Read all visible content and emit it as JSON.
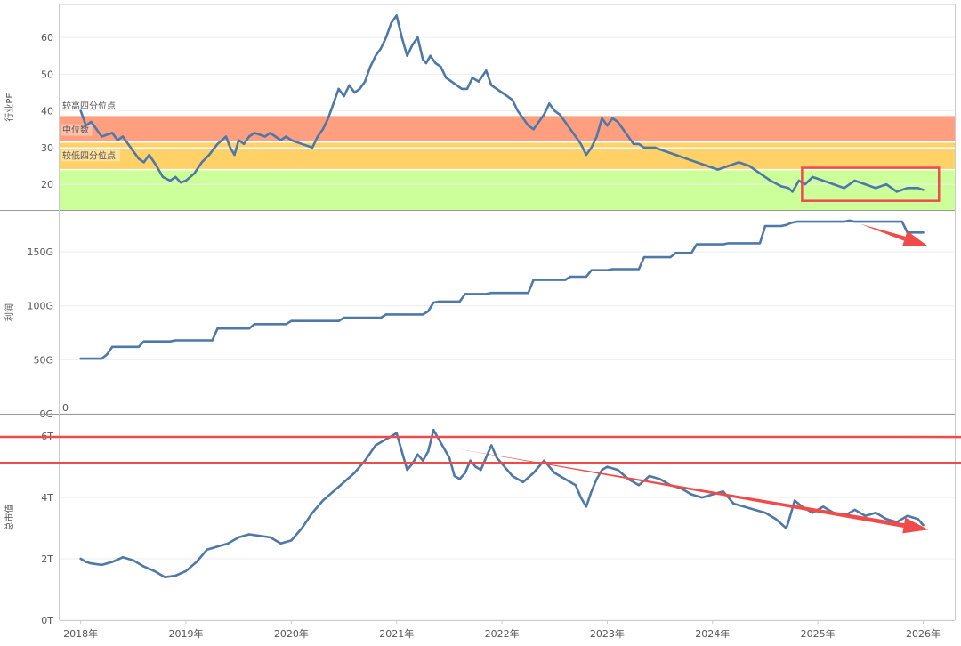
{
  "colors": {
    "line": "#4e79a7",
    "band_high": "#ff9f7f",
    "band_mid": "#ffd166",
    "band_low": "#ccff99",
    "annotation": "#ef4b4b",
    "grid": "#eeeeee",
    "axis": "#cccccc"
  },
  "chart_data": [
    {
      "id": "pe",
      "type": "line",
      "ylabel": "行业PE",
      "ylim": [
        13,
        69
      ],
      "yticks": [
        {
          "v": 20,
          "label": "20"
        },
        {
          "v": 30,
          "label": "30"
        },
        {
          "v": 40,
          "label": "40"
        },
        {
          "v": 50,
          "label": "50"
        },
        {
          "v": 60,
          "label": "60"
        }
      ],
      "bands": [
        {
          "from": 31.5,
          "to": 38.8,
          "label": "较高四分位点",
          "label_at": 40.8,
          "color": "band_high"
        },
        {
          "from": 29.8,
          "to": 31.5,
          "label": "中位数",
          "label_at": 34.2,
          "color": "band_mid"
        },
        {
          "from": 24.0,
          "to": 29.8,
          "label": "较低四分位点",
          "label_at": 27.2,
          "color": "band_mid"
        },
        {
          "from": 13,
          "to": 24.0,
          "label": "",
          "label_at": 0,
          "color": "band_low"
        }
      ],
      "x": [
        2018.0,
        2018.05,
        2018.1,
        2018.15,
        2018.2,
        2018.3,
        2018.35,
        2018.4,
        2018.45,
        2018.5,
        2018.55,
        2018.6,
        2018.65,
        2018.72,
        2018.78,
        2018.85,
        2018.9,
        2018.95,
        2019.0,
        2019.08,
        2019.15,
        2019.22,
        2019.3,
        2019.38,
        2019.42,
        2019.46,
        2019.5,
        2019.55,
        2019.6,
        2019.65,
        2019.7,
        2019.75,
        2019.8,
        2019.85,
        2019.9,
        2019.95,
        2020.0,
        2020.1,
        2020.2,
        2020.25,
        2020.3,
        2020.35,
        2020.4,
        2020.45,
        2020.5,
        2020.55,
        2020.6,
        2020.65,
        2020.7,
        2020.75,
        2020.8,
        2020.85,
        2020.9,
        2020.95,
        2021.0,
        2021.05,
        2021.1,
        2021.15,
        2021.2,
        2021.25,
        2021.28,
        2021.32,
        2021.37,
        2021.42,
        2021.47,
        2021.52,
        2021.57,
        2021.62,
        2021.67,
        2021.72,
        2021.78,
        2021.85,
        2021.9,
        2021.95,
        2022.0,
        2022.05,
        2022.1,
        2022.15,
        2022.2,
        2022.25,
        2022.3,
        2022.35,
        2022.4,
        2022.45,
        2022.5,
        2022.55,
        2022.6,
        2022.65,
        2022.7,
        2022.75,
        2022.8,
        2022.85,
        2022.9,
        2022.95,
        2023.0,
        2023.05,
        2023.1,
        2023.15,
        2023.2,
        2023.25,
        2023.3,
        2023.35,
        2023.45,
        2023.55,
        2023.65,
        2023.75,
        2023.85,
        2023.95,
        2024.05,
        2024.15,
        2024.25,
        2024.35,
        2024.45,
        2024.55,
        2024.65,
        2024.72,
        2024.76,
        2024.82,
        2024.88,
        2024.95,
        2025.05,
        2025.15,
        2025.25,
        2025.35,
        2025.45,
        2025.55,
        2025.65,
        2025.75,
        2025.85,
        2025.95,
        2026.0
      ],
      "values": [
        40,
        36,
        37,
        35,
        33,
        34,
        32,
        33,
        31,
        29,
        27,
        26,
        28,
        25,
        22,
        21,
        22,
        20.5,
        21,
        23,
        26,
        28,
        31,
        33,
        30,
        28,
        32,
        31,
        33,
        34,
        33.5,
        33,
        34,
        33,
        32,
        33,
        32,
        31,
        30,
        33,
        35,
        38,
        42,
        46,
        44,
        47,
        45,
        46,
        48,
        52,
        55,
        57,
        60,
        64,
        66,
        60,
        55,
        58,
        60,
        54,
        53,
        55,
        53,
        52,
        49,
        48,
        47,
        46,
        46,
        49,
        48,
        51,
        47,
        46,
        45,
        44,
        43,
        40,
        38,
        36,
        35,
        37,
        39,
        42,
        40,
        39,
        37,
        35,
        33,
        31,
        28,
        30,
        33,
        38,
        36,
        38,
        37,
        35,
        33,
        31,
        31,
        30,
        30,
        29,
        28,
        27,
        26,
        25,
        24,
        25,
        26,
        25,
        23,
        21,
        19.5,
        19,
        18,
        21,
        20,
        22,
        21,
        20,
        19,
        21,
        20,
        19,
        20,
        18,
        19,
        19,
        18.5
      ]
    },
    {
      "id": "profit",
      "type": "line",
      "ylabel": "利润",
      "ylim": [
        0,
        188
      ],
      "zero_label": "0",
      "yticks": [
        {
          "v": 0,
          "label": "0G"
        },
        {
          "v": 50,
          "label": "50G"
        },
        {
          "v": 100,
          "label": "100G"
        },
        {
          "v": 150,
          "label": "150G"
        }
      ],
      "x": [
        2018.0,
        2018.2,
        2018.25,
        2018.3,
        2018.55,
        2018.6,
        2018.85,
        2018.9,
        2019.25,
        2019.3,
        2019.6,
        2019.65,
        2019.95,
        2020.0,
        2020.45,
        2020.5,
        2020.85,
        2020.9,
        2021.25,
        2021.3,
        2021.35,
        2021.4,
        2021.6,
        2021.65,
        2021.85,
        2021.9,
        2022.25,
        2022.3,
        2022.6,
        2022.65,
        2022.8,
        2022.85,
        2023.0,
        2023.05,
        2023.3,
        2023.35,
        2023.6,
        2023.65,
        2023.8,
        2023.85,
        2024.1,
        2024.15,
        2024.45,
        2024.5,
        2024.65,
        2024.7,
        2024.75,
        2024.8,
        2025.25,
        2025.3,
        2025.35,
        2025.8,
        2025.85,
        2026.0
      ],
      "values": [
        51,
        51,
        55,
        62,
        62,
        67,
        67,
        68,
        68,
        79,
        79,
        83,
        83,
        86,
        86,
        89,
        89,
        92,
        92,
        95,
        103,
        104,
        104,
        111,
        111,
        112,
        112,
        124,
        124,
        127,
        127,
        133,
        133,
        134,
        134,
        145,
        145,
        149,
        149,
        157,
        157,
        158,
        158,
        174,
        174,
        175,
        177,
        178,
        178,
        179,
        178,
        178,
        168,
        168
      ]
    },
    {
      "id": "mcap",
      "type": "line",
      "ylabel": "总市值",
      "ylim": [
        0,
        6.7
      ],
      "yticks": [
        {
          "v": 0,
          "label": "0T"
        },
        {
          "v": 2,
          "label": "2T"
        },
        {
          "v": 4,
          "label": "4T"
        },
        {
          "v": 6,
          "label": "6T"
        }
      ],
      "x": [
        2018.0,
        2018.05,
        2018.1,
        2018.2,
        2018.3,
        2018.4,
        2018.5,
        2018.6,
        2018.7,
        2018.8,
        2018.9,
        2019.0,
        2019.1,
        2019.2,
        2019.3,
        2019.4,
        2019.5,
        2019.6,
        2019.7,
        2019.8,
        2019.9,
        2020.0,
        2020.1,
        2020.2,
        2020.3,
        2020.4,
        2020.5,
        2020.6,
        2020.7,
        2020.8,
        2020.9,
        2021.0,
        2021.05,
        2021.1,
        2021.15,
        2021.2,
        2021.25,
        2021.3,
        2021.35,
        2021.4,
        2021.45,
        2021.5,
        2021.55,
        2021.6,
        2021.65,
        2021.7,
        2021.75,
        2021.8,
        2021.85,
        2021.9,
        2021.95,
        2022.0,
        2022.1,
        2022.2,
        2022.3,
        2022.4,
        2022.5,
        2022.6,
        2022.7,
        2022.75,
        2022.8,
        2022.85,
        2022.9,
        2022.95,
        2023.0,
        2023.1,
        2023.2,
        2023.3,
        2023.4,
        2023.5,
        2023.6,
        2023.7,
        2023.8,
        2023.9,
        2024.0,
        2024.1,
        2024.2,
        2024.3,
        2024.4,
        2024.5,
        2024.6,
        2024.7,
        2024.72,
        2024.78,
        2024.85,
        2024.95,
        2025.05,
        2025.15,
        2025.25,
        2025.35,
        2025.45,
        2025.55,
        2025.65,
        2025.75,
        2025.85,
        2025.95,
        2026.0
      ],
      "values": [
        2.0,
        1.9,
        1.85,
        1.8,
        1.9,
        2.05,
        1.95,
        1.75,
        1.6,
        1.4,
        1.45,
        1.6,
        1.9,
        2.3,
        2.4,
        2.5,
        2.7,
        2.8,
        2.75,
        2.7,
        2.5,
        2.6,
        3.0,
        3.5,
        3.9,
        4.2,
        4.5,
        4.8,
        5.2,
        5.7,
        5.9,
        6.1,
        5.5,
        4.9,
        5.1,
        5.4,
        5.2,
        5.5,
        6.2,
        5.9,
        5.6,
        5.3,
        4.7,
        4.6,
        4.8,
        5.2,
        5.0,
        4.9,
        5.3,
        5.7,
        5.3,
        5.1,
        4.7,
        4.5,
        4.8,
        5.2,
        4.8,
        4.6,
        4.4,
        4.0,
        3.7,
        4.2,
        4.6,
        4.9,
        5.0,
        4.9,
        4.6,
        4.4,
        4.7,
        4.6,
        4.4,
        4.3,
        4.1,
        4.0,
        4.1,
        4.2,
        3.8,
        3.7,
        3.6,
        3.5,
        3.3,
        3.0,
        3.2,
        3.9,
        3.7,
        3.5,
        3.7,
        3.5,
        3.4,
        3.6,
        3.4,
        3.5,
        3.3,
        3.2,
        3.4,
        3.3,
        3.1
      ]
    }
  ],
  "x_axis": {
    "xlim": [
      2017.8,
      2026.3
    ],
    "ticks": [
      {
        "v": 2018,
        "label": "2018年"
      },
      {
        "v": 2019,
        "label": "2019年"
      },
      {
        "v": 2020,
        "label": "2020年"
      },
      {
        "v": 2021,
        "label": "2021年"
      },
      {
        "v": 2022,
        "label": "2022年"
      },
      {
        "v": 2023,
        "label": "2023年"
      },
      {
        "v": 2024,
        "label": "2024年"
      },
      {
        "v": 2025,
        "label": "2025年"
      },
      {
        "v": 2026,
        "label": "2026年"
      }
    ]
  },
  "annotations": [
    {
      "type": "rect",
      "panel": "pe",
      "x": [
        2024.85,
        2026.15
      ],
      "y": [
        15.5,
        24.5
      ]
    },
    {
      "type": "arrow",
      "panel": "profit",
      "from": [
        2025.4,
        176
      ],
      "to": [
        2026.05,
        155
      ]
    },
    {
      "type": "ellipse",
      "panel": "mcap",
      "x": [
        2021.3,
        2021.65
      ],
      "y": [
        5.55,
        0.85
      ]
    },
    {
      "type": "arrow",
      "panel": "mcap",
      "from": [
        2021.55,
        5.6
      ],
      "to": [
        2026.05,
        2.95
      ]
    }
  ]
}
